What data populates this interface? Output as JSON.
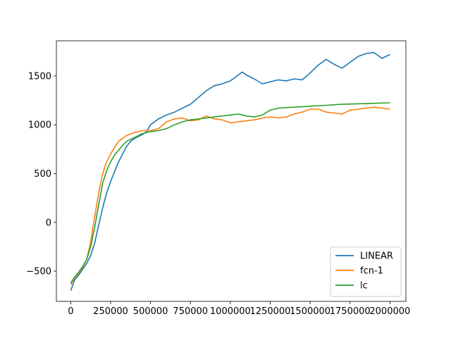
{
  "chart_data": {
    "type": "line",
    "title": "",
    "xlabel": "",
    "ylabel": "",
    "xlim": [
      -90000,
      2100000
    ],
    "ylim": [
      -810,
      1860
    ],
    "grid": false,
    "legend_position": "bottom-right",
    "x_ticks": [
      0,
      250000,
      500000,
      750000,
      1000000,
      1250000,
      1500000,
      1750000,
      2000000
    ],
    "x_tick_labels": [
      "0",
      "250000",
      "500000",
      "750000",
      "1000000",
      "1250000",
      "1500000",
      "1750000",
      "2000000"
    ],
    "y_ticks": [
      -500,
      0,
      500,
      1000,
      1500
    ],
    "y_tick_labels": [
      "−500",
      "0",
      "500",
      "1000",
      "1500"
    ],
    "series": [
      {
        "name": "LINEAR",
        "color": "#1f77b4",
        "x": [
          0,
          25000,
          50000,
          75000,
          100000,
          125000,
          150000,
          175000,
          200000,
          225000,
          250000,
          275000,
          300000,
          325000,
          350000,
          375000,
          400000,
          425000,
          450000,
          475000,
          500000,
          550000,
          600000,
          650000,
          700000,
          750000,
          800000,
          850000,
          900000,
          950000,
          1000000,
          1050000,
          1075000,
          1100000,
          1150000,
          1200000,
          1250000,
          1300000,
          1350000,
          1400000,
          1450000,
          1500000,
          1550000,
          1600000,
          1650000,
          1700000,
          1750000,
          1800000,
          1850000,
          1900000,
          1950000,
          2000000
        ],
        "values": [
          -700,
          -590,
          -540,
          -480,
          -420,
          -340,
          -210,
          -30,
          150,
          300,
          420,
          520,
          620,
          700,
          780,
          830,
          860,
          880,
          900,
          930,
          1000,
          1060,
          1100,
          1130,
          1170,
          1210,
          1280,
          1350,
          1400,
          1420,
          1450,
          1510,
          1540,
          1510,
          1470,
          1420,
          1440,
          1460,
          1450,
          1470,
          1460,
          1530,
          1610,
          1670,
          1620,
          1580,
          1640,
          1700,
          1730,
          1740,
          1680,
          1720
        ]
      },
      {
        "name": "fcn-1",
        "color": "#ff7f0e",
        "x": [
          0,
          25000,
          50000,
          75000,
          100000,
          125000,
          150000,
          175000,
          200000,
          225000,
          250000,
          275000,
          300000,
          325000,
          350000,
          400000,
          450000,
          500000,
          550000,
          600000,
          650000,
          700000,
          750000,
          800000,
          850000,
          900000,
          950000,
          1000000,
          1050000,
          1100000,
          1150000,
          1200000,
          1250000,
          1300000,
          1350000,
          1400000,
          1450000,
          1500000,
          1550000,
          1600000,
          1650000,
          1700000,
          1750000,
          1800000,
          1850000,
          1900000,
          1950000,
          2000000
        ],
        "values": [
          -640,
          -570,
          -520,
          -460,
          -380,
          -200,
          60,
          300,
          500,
          620,
          700,
          770,
          830,
          860,
          890,
          920,
          940,
          940,
          960,
          1030,
          1060,
          1070,
          1040,
          1050,
          1090,
          1060,
          1050,
          1020,
          1030,
          1040,
          1050,
          1070,
          1080,
          1070,
          1080,
          1110,
          1130,
          1160,
          1160,
          1130,
          1120,
          1110,
          1150,
          1160,
          1170,
          1180,
          1170,
          1160
        ]
      },
      {
        "name": "lc",
        "color": "#2ca02c",
        "x": [
          0,
          25000,
          50000,
          75000,
          100000,
          125000,
          150000,
          175000,
          200000,
          225000,
          250000,
          275000,
          300000,
          325000,
          350000,
          400000,
          450000,
          500000,
          550000,
          600000,
          650000,
          700000,
          750000,
          800000,
          850000,
          900000,
          950000,
          1000000,
          1050000,
          1100000,
          1150000,
          1200000,
          1250000,
          1300000,
          1400000,
          1500000,
          1600000,
          1700000,
          1800000,
          1900000,
          2000000
        ],
        "values": [
          -620,
          -560,
          -510,
          -450,
          -380,
          -250,
          -50,
          180,
          400,
          530,
          620,
          690,
          740,
          790,
          830,
          870,
          910,
          930,
          940,
          960,
          1000,
          1030,
          1050,
          1060,
          1070,
          1080,
          1090,
          1100,
          1110,
          1090,
          1080,
          1100,
          1150,
          1170,
          1180,
          1190,
          1200,
          1210,
          1215,
          1220,
          1225
        ]
      }
    ]
  }
}
